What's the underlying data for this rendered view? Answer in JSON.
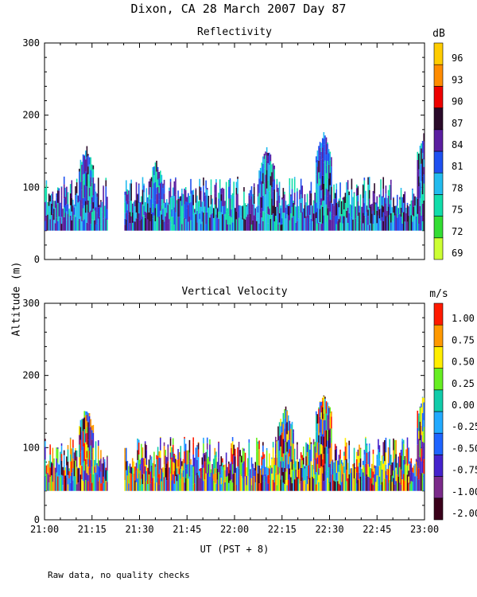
{
  "title": "Dixon, CA 28 March 2007  Day  87",
  "footnote": "Raw data, no quality checks",
  "y_axis_label": "Altitude (m)",
  "x_axis_label": "UT  (PST + 8)",
  "chart_data": [
    {
      "type": "heatmap",
      "title": "Reflectivity",
      "ylabel": "Altitude (m)",
      "ylim": [
        0,
        300
      ],
      "yticks": [
        0,
        100,
        200,
        300
      ],
      "xlabel": "UT  (PST + 8)",
      "x_range": [
        "21:00",
        "23:00"
      ],
      "x_ticks": [
        "21:00",
        "21:15",
        "21:30",
        "21:45",
        "22:00",
        "22:15",
        "22:30",
        "22:45",
        "23:00"
      ],
      "colorbar": {
        "unit": "dB",
        "labels": [
          "69",
          "72",
          "75",
          "78",
          "81",
          "84",
          "87",
          "90",
          "93",
          "96"
        ],
        "colors": [
          "#ccff33",
          "#33dd33",
          "#11ddaa",
          "#22bbee",
          "#1e50f0",
          "#5a1ea0",
          "#2a0a2a",
          "#ee0000",
          "#ff8c00",
          "#ffcc00"
        ]
      },
      "data_altitude_range": [
        40,
        180
      ],
      "data_gap": [
        "21:20",
        "21:25"
      ],
      "peaks": [
        {
          "time": "21:13",
          "altitude": 160
        },
        {
          "time": "21:35",
          "altitude": 140
        },
        {
          "time": "22:10",
          "altitude": 160
        },
        {
          "time": "22:28",
          "altitude": 180
        },
        {
          "time": "23:00",
          "altitude": 180
        }
      ]
    },
    {
      "type": "heatmap",
      "title": "Vertical Velocity",
      "ylabel": "Altitude (m)",
      "ylim": [
        0,
        300
      ],
      "yticks": [
        0,
        100,
        200,
        300
      ],
      "xlabel": "UT  (PST + 8)",
      "x_range": [
        "21:00",
        "23:00"
      ],
      "x_ticks": [
        "21:00",
        "21:15",
        "21:30",
        "21:45",
        "22:00",
        "22:15",
        "22:30",
        "22:45",
        "23:00"
      ],
      "colorbar": {
        "unit": "m/s",
        "labels": [
          "-2.00",
          "-1.00",
          "-0.75",
          "-0.50",
          "-0.25",
          "0.00",
          "0.25",
          "0.50",
          "0.75",
          "1.00"
        ],
        "colors": [
          "#3a001a",
          "#7a2a8a",
          "#4422cc",
          "#1e64ff",
          "#22aaff",
          "#11ccaa",
          "#66ee22",
          "#ffee00",
          "#ff9900",
          "#ff1a00"
        ]
      },
      "data_altitude_range": [
        40,
        180
      ],
      "data_gap": [
        "21:20",
        "21:25"
      ],
      "peaks": [
        {
          "time": "21:13",
          "altitude": 160
        },
        {
          "time": "22:16",
          "altitude": 160
        },
        {
          "time": "22:28",
          "altitude": 180
        },
        {
          "time": "23:00",
          "altitude": 180
        }
      ]
    }
  ]
}
